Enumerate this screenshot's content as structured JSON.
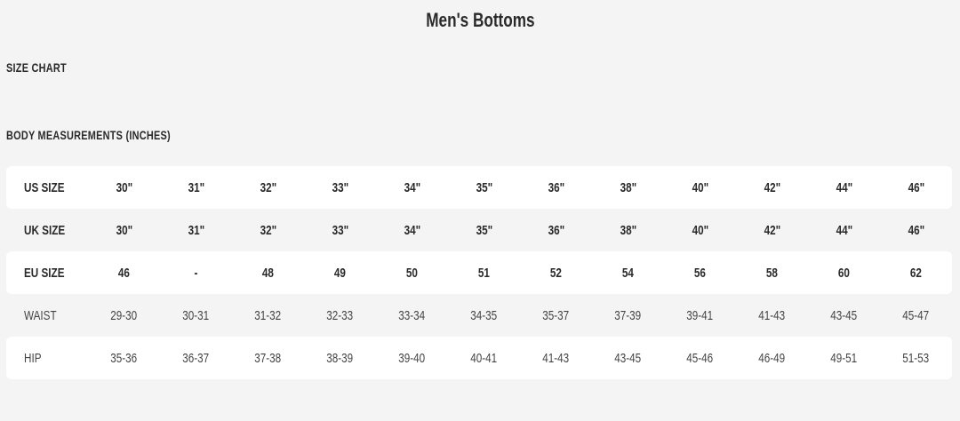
{
  "title": "Men's Bottoms",
  "section_heading": "SIZE CHART",
  "sub_heading": "BODY MEASUREMENTS (INCHES)",
  "rows": [
    {
      "label": "US SIZE",
      "bold": true,
      "values": [
        "30\"",
        "31\"",
        "32\"",
        "33\"",
        "34\"",
        "35\"",
        "36\"",
        "38\"",
        "40\"",
        "42\"",
        "44\"",
        "46\""
      ]
    },
    {
      "label": "UK SIZE",
      "bold": true,
      "values": [
        "30\"",
        "31\"",
        "32\"",
        "33\"",
        "34\"",
        "35\"",
        "36\"",
        "38\"",
        "40\"",
        "42\"",
        "44\"",
        "46\""
      ]
    },
    {
      "label": "EU SIZE",
      "bold": true,
      "values": [
        "46",
        "-",
        "48",
        "49",
        "50",
        "51",
        "52",
        "54",
        "56",
        "58",
        "60",
        "62"
      ]
    },
    {
      "label": "WAIST",
      "bold": false,
      "values": [
        "29-30",
        "30-31",
        "31-32",
        "32-33",
        "33-34",
        "34-35",
        "35-37",
        "37-39",
        "39-41",
        "41-43",
        "43-45",
        "45-47"
      ]
    },
    {
      "label": "HIP",
      "bold": false,
      "values": [
        "35-36",
        "36-37",
        "37-38",
        "38-39",
        "39-40",
        "40-41",
        "41-43",
        "43-45",
        "45-46",
        "46-49",
        "49-51",
        "51-53"
      ]
    }
  ]
}
